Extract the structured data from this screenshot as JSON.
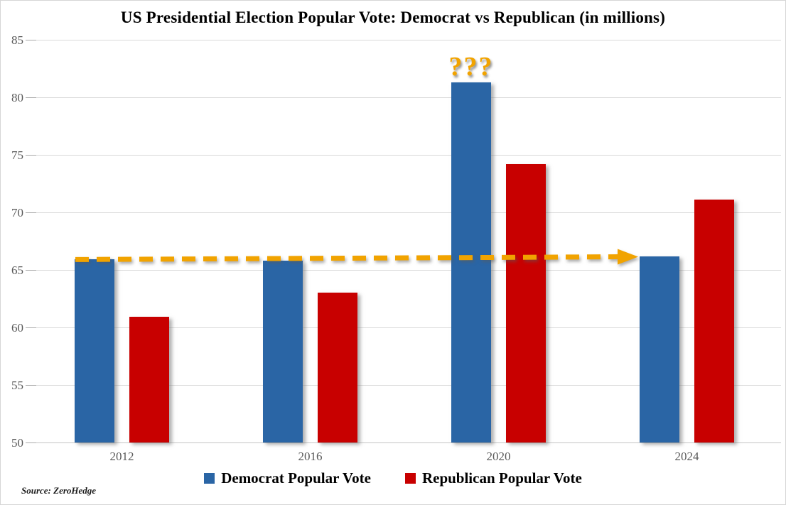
{
  "chart_data": {
    "type": "bar",
    "title": "US Presidential Election Popular Vote: Democrat vs Republican (in millions)",
    "categories": [
      "2012",
      "2016",
      "2020",
      "2024"
    ],
    "series": [
      {
        "name": "Democrat Popular Vote",
        "color": "#2A65A5",
        "values": [
          65.9,
          65.8,
          81.3,
          66.2
        ]
      },
      {
        "name": "Republican Popular Vote",
        "color": "#C80000",
        "values": [
          60.9,
          63.0,
          74.2,
          71.1
        ]
      }
    ],
    "ylim": [
      50,
      85
    ],
    "yticks": [
      50,
      55,
      60,
      65,
      70,
      75,
      80,
      85
    ],
    "xlabel": "",
    "ylabel": "",
    "grid": "horizontal",
    "legend_position": "bottom-center",
    "annotations": [
      {
        "id": "question-marks",
        "type": "text",
        "text": "???",
        "color": "#F1A300",
        "category": "2020",
        "series": "Democrat Popular Vote",
        "placement": "above-bar"
      },
      {
        "id": "trend-arrow",
        "type": "dashed-arrow",
        "color": "#F1A300",
        "from": {
          "category": "2012",
          "value": 65.9
        },
        "to": {
          "category": "2024",
          "value": 66.2
        }
      }
    ]
  },
  "colors": {
    "democrat": "#2A65A5",
    "republican": "#C80000",
    "annotation_orange": "#F1A300",
    "gridline": "#D9D9D9",
    "tick": "#A9A9A9",
    "axis_label": "#595959",
    "title_text": "#000000",
    "background": "#FFFFFF",
    "frame_border": "#D6D6D6"
  },
  "source": "Source: ZeroHedge"
}
